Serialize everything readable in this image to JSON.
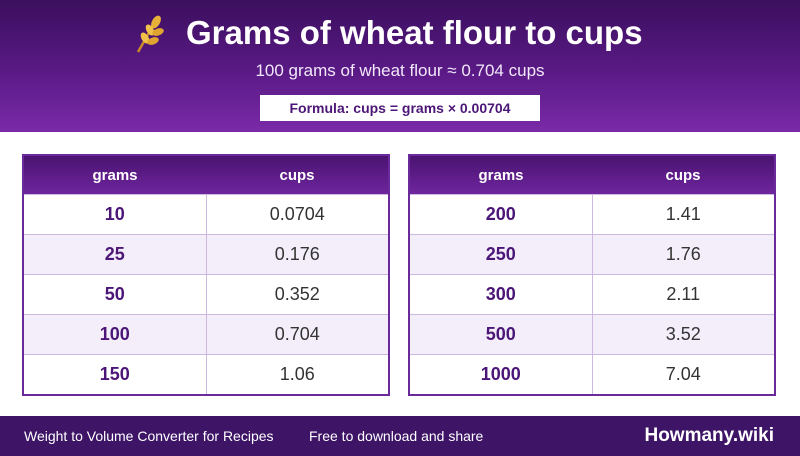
{
  "header": {
    "title": "Grams of wheat flour to cups",
    "subtitle": "100 grams of wheat flour ≈ 0.704 cups",
    "formula": "Formula: cups = grams × 0.00704"
  },
  "tables": [
    {
      "columns": [
        "grams",
        "cups"
      ],
      "rows": [
        [
          "10",
          "0.0704"
        ],
        [
          "25",
          "0.176"
        ],
        [
          "50",
          "0.352"
        ],
        [
          "100",
          "0.704"
        ],
        [
          "150",
          "1.06"
        ]
      ]
    },
    {
      "columns": [
        "grams",
        "cups"
      ],
      "rows": [
        [
          "200",
          "1.41"
        ],
        [
          "250",
          "1.76"
        ],
        [
          "300",
          "2.11"
        ],
        [
          "500",
          "3.52"
        ],
        [
          "1000",
          "7.04"
        ]
      ]
    }
  ],
  "footer": {
    "left": "Weight to Volume Converter for Recipes",
    "middle": "Free to download and share",
    "brand": "Howmany.wiki"
  }
}
